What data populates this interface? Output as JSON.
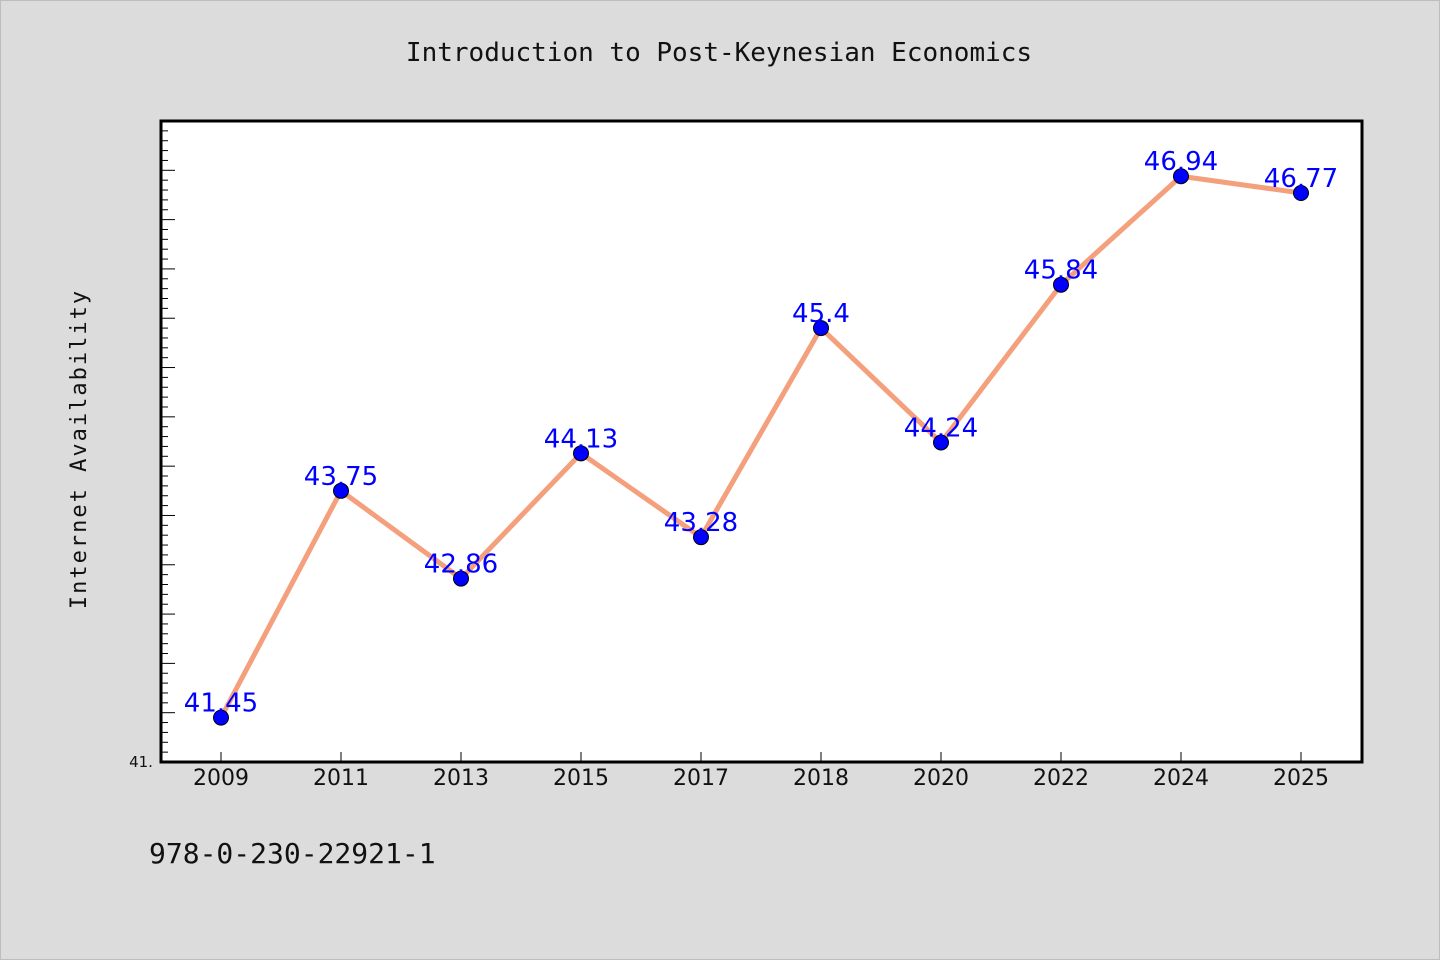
{
  "chart_data": {
    "type": "line",
    "title": "Introduction to Post-Keynesian Economics",
    "xlabel": "",
    "ylabel": "Internet Availability",
    "categories": [
      "2009",
      "2011",
      "2013",
      "2015",
      "2017",
      "2018",
      "2020",
      "2022",
      "2024",
      "2025"
    ],
    "series": [
      {
        "values": [
          41.45,
          43.75,
          42.86,
          44.13,
          43.28,
          45.4,
          44.24,
          45.84,
          46.94,
          46.77
        ],
        "line_color": "#f4a07c",
        "marker_color": "#0000ff"
      }
    ],
    "data_labels": [
      "41.45",
      "43.75",
      "42.86",
      "44.13",
      "43.28",
      "45.4",
      "44.24",
      "45.84",
      "46.94",
      "46.77"
    ],
    "ylim": [
      41,
      47.5
    ],
    "y_tick_labels": [
      "41."
    ],
    "grid": false,
    "legend": "none"
  },
  "footer": {
    "isbn": "978-0-230-22921-1"
  },
  "colors": {
    "background": "#dcdcdc",
    "plot_background": "#ffffff",
    "axis": "#000000",
    "label": "#0000ff"
  }
}
